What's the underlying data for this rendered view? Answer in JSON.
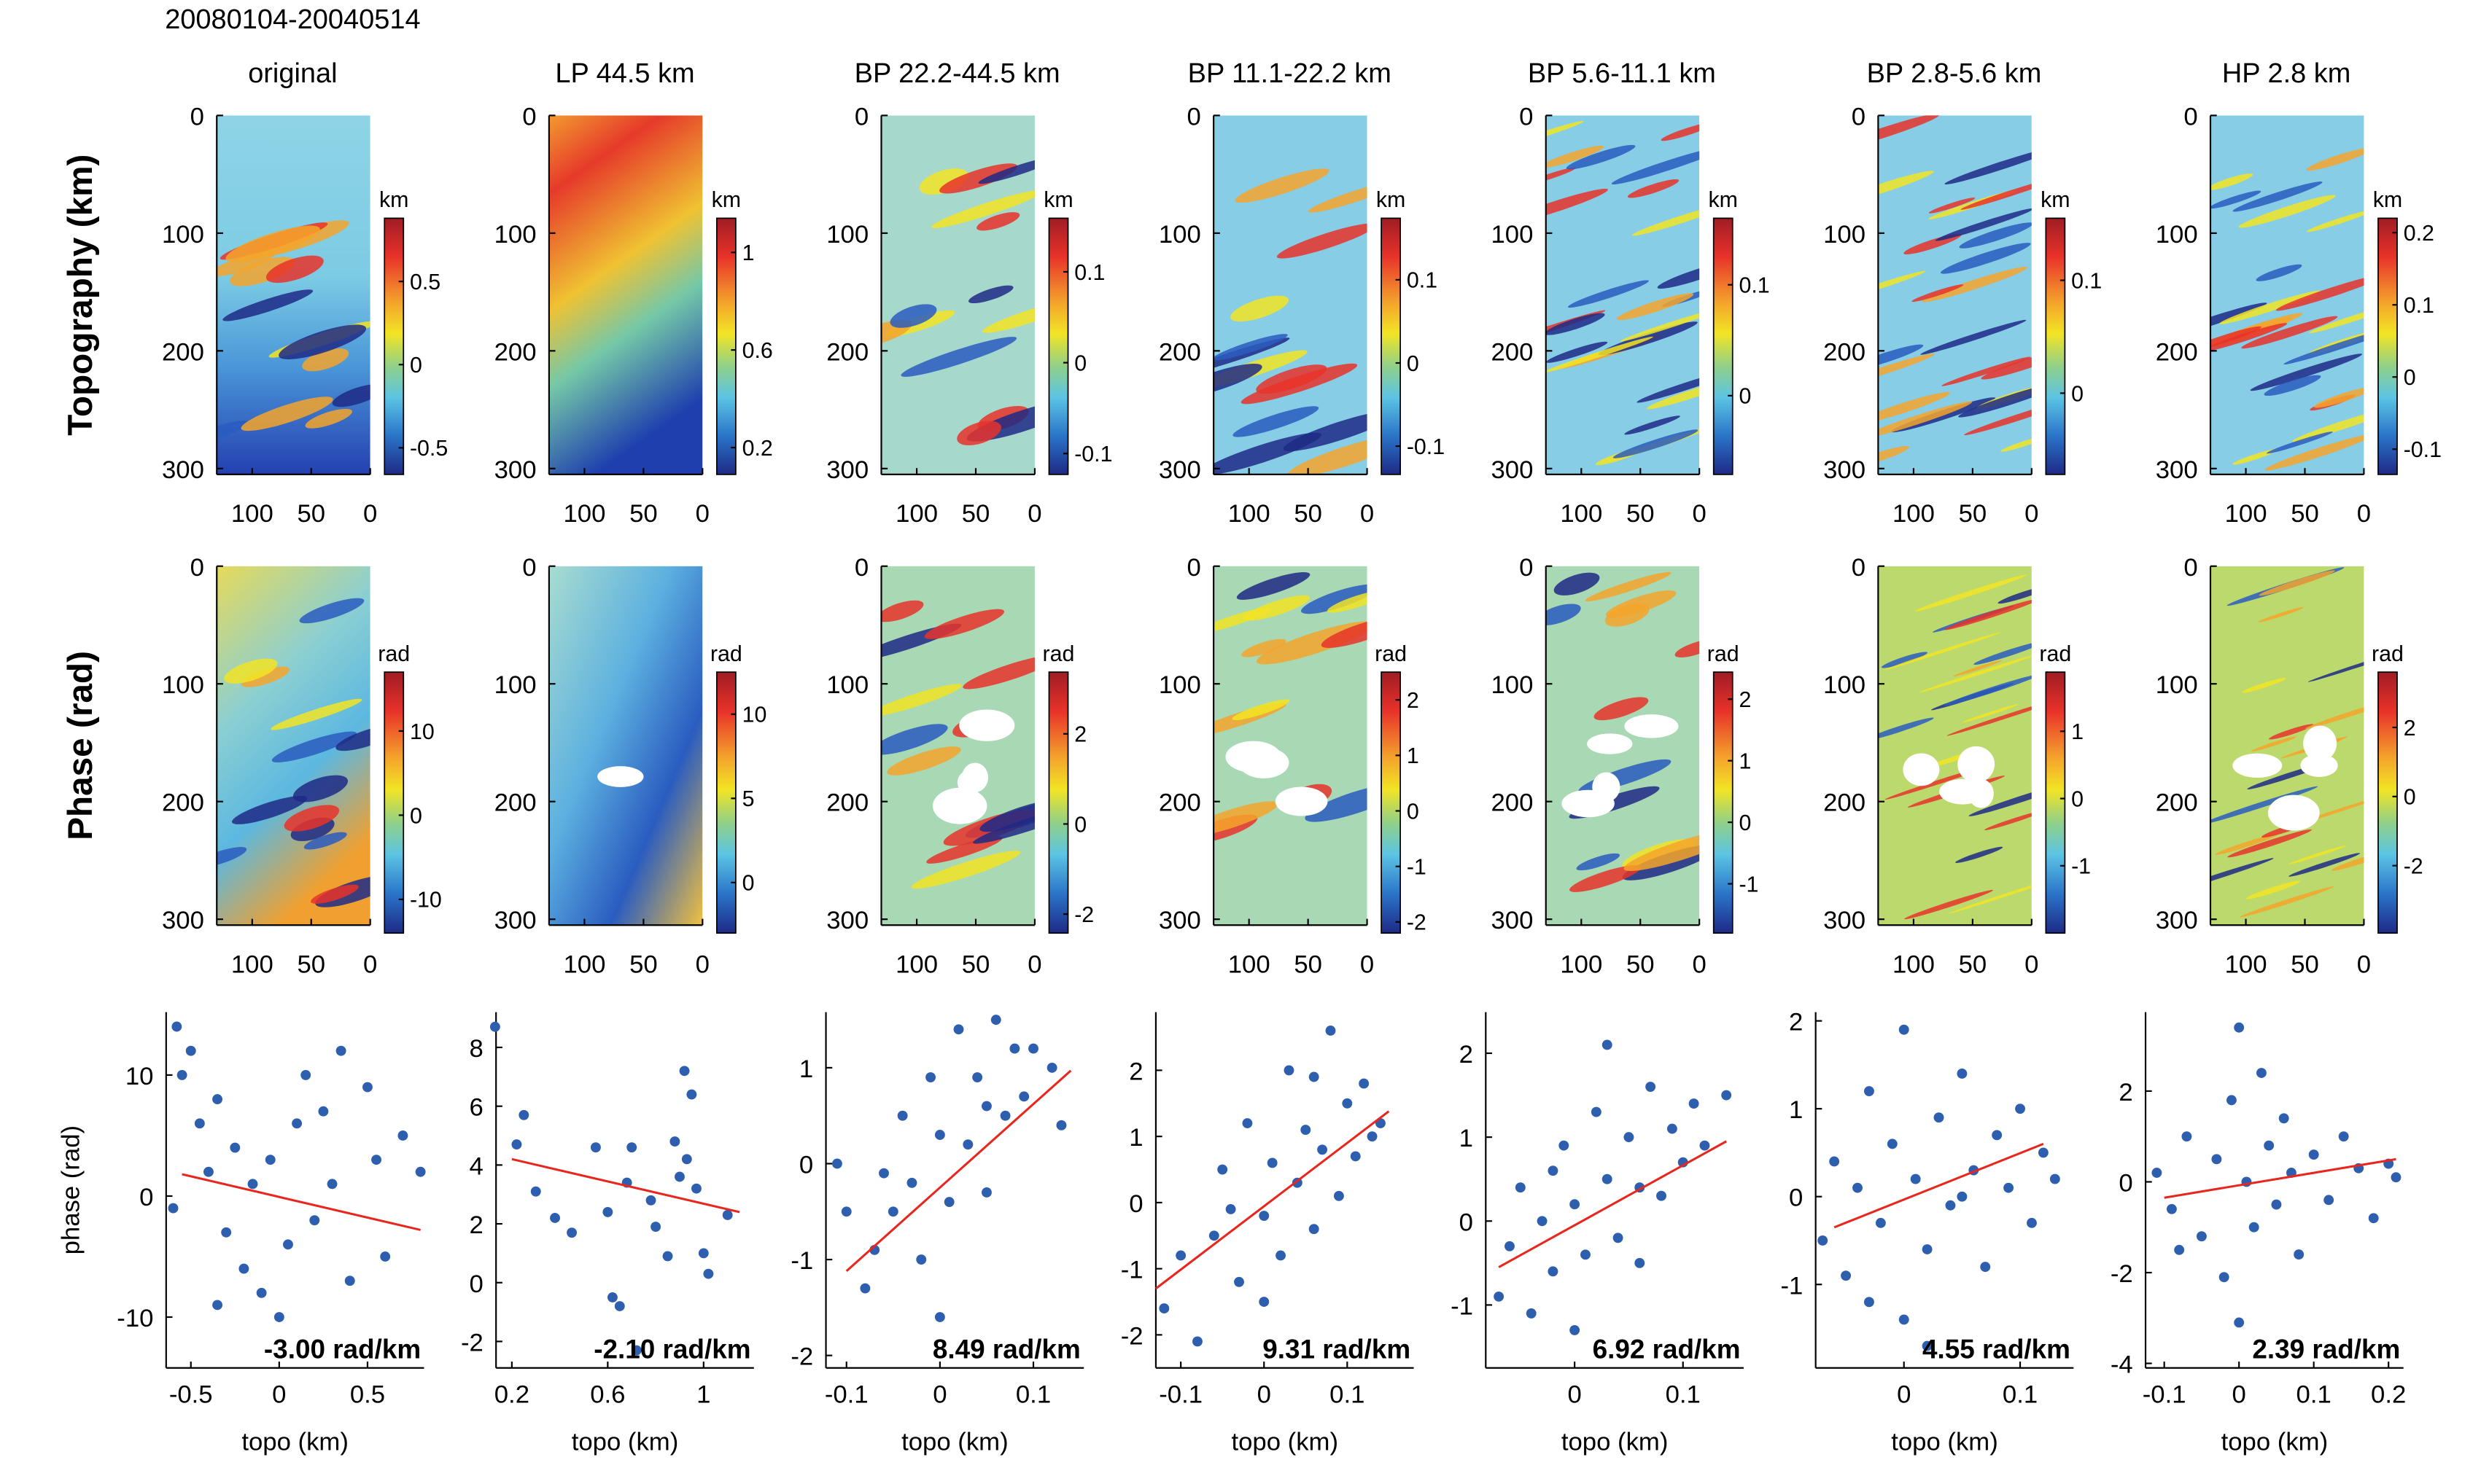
{
  "header": "20080104-20040514",
  "chart_data": [
    {
      "type": "heatmap",
      "title": "original",
      "ylabel": "Topography (km)",
      "ylim": [
        0,
        305
      ],
      "yticks": [
        0,
        100,
        200,
        300
      ],
      "xlim": [
        130,
        0
      ],
      "xticks": [
        100,
        50,
        0
      ],
      "colorbar": {
        "label": "km",
        "lim": [
          -0.66,
          0.88
        ],
        "ticks": [
          0.5,
          0,
          -0.5
        ]
      }
    },
    {
      "type": "heatmap",
      "title": "LP 44.5 km",
      "ylim": [
        0,
        305
      ],
      "yticks": [
        0,
        100,
        200,
        300
      ],
      "xlim": [
        130,
        0
      ],
      "xticks": [
        100,
        50,
        0
      ],
      "colorbar": {
        "label": "km",
        "lim": [
          0.09,
          1.14
        ],
        "ticks": [
          1,
          0.6,
          0.2
        ]
      }
    },
    {
      "type": "heatmap",
      "title": "BP 22.2-44.5 km",
      "ylim": [
        0,
        305
      ],
      "yticks": [
        0,
        100,
        200,
        300
      ],
      "xlim": [
        130,
        0
      ],
      "xticks": [
        100,
        50,
        0
      ],
      "colorbar": {
        "label": "km",
        "lim": [
          -0.123,
          0.159
        ],
        "ticks": [
          0.1,
          0,
          -0.1
        ]
      }
    },
    {
      "type": "heatmap",
      "title": "BP 11.1-22.2 km",
      "ylim": [
        0,
        305
      ],
      "yticks": [
        0,
        100,
        200,
        300
      ],
      "xlim": [
        130,
        0
      ],
      "xticks": [
        100,
        50,
        0
      ],
      "colorbar": {
        "label": "km",
        "lim": [
          -0.134,
          0.174
        ],
        "ticks": [
          0.1,
          0,
          -0.1
        ]
      }
    },
    {
      "type": "heatmap",
      "title": "BP 5.6-11.1 km",
      "ylim": [
        0,
        305
      ],
      "yticks": [
        0,
        100,
        200,
        300
      ],
      "xlim": [
        130,
        0
      ],
      "xticks": [
        100,
        50,
        0
      ],
      "colorbar": {
        "label": "km",
        "lim": [
          -0.071,
          0.16
        ],
        "ticks": [
          0.1,
          0
        ]
      }
    },
    {
      "type": "heatmap",
      "title": "BP 2.8-5.6 km",
      "ylim": [
        0,
        305
      ],
      "yticks": [
        0,
        100,
        200,
        300
      ],
      "xlim": [
        130,
        0
      ],
      "xticks": [
        100,
        50,
        0
      ],
      "colorbar": {
        "label": "km",
        "lim": [
          -0.072,
          0.155
        ],
        "ticks": [
          0.1,
          0
        ]
      }
    },
    {
      "type": "heatmap",
      "title": "HP 2.8 km",
      "ylim": [
        0,
        305
      ],
      "yticks": [
        0,
        100,
        200,
        300
      ],
      "xlim": [
        130,
        0
      ],
      "xticks": [
        100,
        50,
        0
      ],
      "colorbar": {
        "label": "km",
        "lim": [
          -0.135,
          0.22
        ],
        "ticks": [
          0.2,
          0.1,
          0,
          -0.1
        ]
      }
    },
    {
      "type": "heatmap",
      "ylabel": "Phase (rad)",
      "ylim": [
        0,
        305
      ],
      "yticks": [
        0,
        100,
        200,
        300
      ],
      "xlim": [
        130,
        0
      ],
      "xticks": [
        100,
        50,
        0
      ],
      "colorbar": {
        "label": "rad",
        "lim": [
          -14,
          17
        ],
        "ticks": [
          10,
          0,
          -10
        ]
      }
    },
    {
      "type": "heatmap",
      "ylim": [
        0,
        305
      ],
      "yticks": [
        0,
        100,
        200,
        300
      ],
      "xlim": [
        130,
        0
      ],
      "xticks": [
        100,
        50,
        0
      ],
      "colorbar": {
        "label": "rad",
        "lim": [
          -3,
          12.5
        ],
        "ticks": [
          10,
          5,
          0
        ]
      }
    },
    {
      "type": "heatmap",
      "ylim": [
        0,
        305
      ],
      "yticks": [
        0,
        100,
        200,
        300
      ],
      "xlim": [
        130,
        0
      ],
      "xticks": [
        100,
        50,
        0
      ],
      "colorbar": {
        "label": "rad",
        "lim": [
          -2.42,
          3.37
        ],
        "ticks": [
          2,
          0,
          -2
        ]
      }
    },
    {
      "type": "heatmap",
      "ylim": [
        0,
        305
      ],
      "yticks": [
        0,
        100,
        200,
        300
      ],
      "xlim": [
        130,
        0
      ],
      "xticks": [
        100,
        50,
        0
      ],
      "colorbar": {
        "label": "rad",
        "lim": [
          -2.2,
          2.5
        ],
        "ticks": [
          2,
          1,
          0,
          -1,
          -2
        ]
      }
    },
    {
      "type": "heatmap",
      "ylim": [
        0,
        305
      ],
      "yticks": [
        0,
        100,
        200,
        300
      ],
      "xlim": [
        130,
        0
      ],
      "xticks": [
        100,
        50,
        0
      ],
      "colorbar": {
        "label": "rad",
        "lim": [
          -1.8,
          2.44
        ],
        "ticks": [
          2,
          1,
          0,
          -1
        ]
      }
    },
    {
      "type": "heatmap",
      "ylim": [
        0,
        305
      ],
      "yticks": [
        0,
        100,
        200,
        300
      ],
      "xlim": [
        130,
        0
      ],
      "xticks": [
        100,
        50,
        0
      ],
      "colorbar": {
        "label": "rad",
        "lim": [
          -2.0,
          1.88
        ],
        "ticks": [
          1,
          0,
          -1
        ]
      }
    },
    {
      "type": "heatmap",
      "ylim": [
        0,
        305
      ],
      "yticks": [
        0,
        100,
        200,
        300
      ],
      "xlim": [
        130,
        0
      ],
      "xticks": [
        100,
        50,
        0
      ],
      "colorbar": {
        "label": "rad",
        "lim": [
          -3.95,
          3.6
        ],
        "ticks": [
          2,
          0,
          -2
        ]
      }
    },
    {
      "type": "scatter",
      "ylabel": "phase (rad)",
      "xlabel": "topo (km)",
      "annotation": "-3.00 rad/km",
      "color": "#2e5fae",
      "xlim": [
        -0.64,
        0.82
      ],
      "ylim": [
        -14.2,
        15.2
      ],
      "xticks": [
        -0.5,
        0,
        0.5
      ],
      "yticks": [
        -10,
        0,
        10
      ],
      "x": [
        -0.58,
        -0.55,
        -0.5,
        -0.45,
        -0.4,
        -0.35,
        -0.3,
        -0.25,
        -0.2,
        -0.15,
        -0.1,
        -0.05,
        0,
        0.05,
        0.1,
        0.15,
        0.2,
        0.3,
        0.35,
        0.4,
        0.5,
        0.55,
        0.6,
        0.7,
        0.8,
        -0.6,
        0.25,
        -0.35
      ],
      "y": [
        14,
        10,
        12,
        6,
        2,
        8,
        -3,
        4,
        -6,
        1,
        -8,
        3,
        -10,
        -4,
        6,
        10,
        -2,
        1,
        12,
        -7,
        9,
        3,
        -5,
        5,
        2,
        -1,
        7,
        -9
      ],
      "fit": {
        "color": "#e8261e",
        "x": [
          -0.55,
          0.8
        ],
        "y": [
          1.8,
          -2.8
        ]
      }
    },
    {
      "type": "scatter",
      "xlabel": "topo (km)",
      "annotation": "-2.10 rad/km",
      "color": "#2e5fae",
      "xlim": [
        0.134,
        1.21
      ],
      "ylim": [
        -2.9,
        9.2
      ],
      "xticks": [
        0.2,
        0.6,
        1
      ],
      "yticks": [
        -2,
        0,
        2,
        4,
        6,
        8
      ],
      "x": [
        0.13,
        0.22,
        0.25,
        0.3,
        0.38,
        0.45,
        0.55,
        0.6,
        0.62,
        0.65,
        0.7,
        0.72,
        0.78,
        0.8,
        0.88,
        0.9,
        0.92,
        0.93,
        0.95,
        0.97,
        1.0,
        1.02,
        0.85,
        0.68,
        1.1
      ],
      "y": [
        8.7,
        4.7,
        5.7,
        3.1,
        2.2,
        1.7,
        4.6,
        2.4,
        -0.5,
        -0.8,
        4.6,
        -2.3,
        2.8,
        1.9,
        4.8,
        3.6,
        7.2,
        4.2,
        6.4,
        3.2,
        1.0,
        0.3,
        0.9,
        3.4,
        2.3
      ],
      "fit": {
        "color": "#e8261e",
        "x": [
          0.2,
          1.15
        ],
        "y": [
          4.2,
          2.4
        ]
      }
    },
    {
      "type": "scatter",
      "xlabel": "topo (km)",
      "annotation": "8.49 rad/km",
      "color": "#2e5fae",
      "xlim": [
        -0.122,
        0.154
      ],
      "ylim": [
        -2.13,
        1.58
      ],
      "xticks": [
        -0.1,
        0,
        0.1
      ],
      "yticks": [
        -2,
        -1,
        0,
        1
      ],
      "x": [
        -0.11,
        -0.1,
        -0.08,
        -0.07,
        -0.05,
        -0.04,
        -0.03,
        -0.02,
        -0.01,
        0,
        0.01,
        0.02,
        0.03,
        0.04,
        0.05,
        0.06,
        0.07,
        0.08,
        0.1,
        0.12,
        0.13,
        0.0,
        -0.06,
        0.05,
        0.09
      ],
      "y": [
        0.0,
        -0.5,
        -1.3,
        -0.9,
        -0.5,
        0.5,
        -0.2,
        -1.0,
        0.9,
        0.3,
        -0.4,
        1.4,
        0.2,
        0.9,
        0.6,
        1.5,
        0.5,
        1.2,
        1.2,
        1.0,
        0.4,
        -1.6,
        -0.1,
        -0.3,
        0.7
      ],
      "fit": {
        "color": "#e8261e",
        "x": [
          -0.1,
          0.14
        ],
        "y": [
          -1.12,
          0.97
        ]
      }
    },
    {
      "type": "scatter",
      "xlabel": "topo (km)",
      "annotation": "9.31 rad/km",
      "color": "#2e5fae",
      "xlim": [
        -0.13,
        0.18
      ],
      "ylim": [
        -2.5,
        2.88
      ],
      "xticks": [
        -0.1,
        0,
        0.1
      ],
      "yticks": [
        -2,
        -1,
        0,
        1,
        2
      ],
      "x": [
        -0.12,
        -0.1,
        -0.08,
        -0.06,
        -0.05,
        -0.03,
        -0.02,
        0,
        0.01,
        0.02,
        0.03,
        0.04,
        0.05,
        0.06,
        0.07,
        0.08,
        0.09,
        0.1,
        0.11,
        0.12,
        0.13,
        0.14,
        -0.04,
        0.0,
        0.06
      ],
      "y": [
        -1.6,
        -0.8,
        -2.1,
        -0.5,
        0.5,
        -1.2,
        1.2,
        -0.2,
        0.6,
        -0.8,
        2.0,
        0.3,
        1.1,
        -0.4,
        0.8,
        2.6,
        0.1,
        1.5,
        0.7,
        1.8,
        1.0,
        1.2,
        -0.1,
        -1.5,
        1.9
      ],
      "fit": {
        "color": "#e8261e",
        "x": [
          -0.13,
          0.15
        ],
        "y": [
          -1.3,
          1.38
        ]
      }
    },
    {
      "type": "scatter",
      "xlabel": "topo (km)",
      "annotation": "6.92 rad/km",
      "color": "#2e5fae",
      "xlim": [
        -0.082,
        0.156
      ],
      "ylim": [
        -1.75,
        2.49
      ],
      "xticks": [
        0,
        0.1
      ],
      "yticks": [
        -1,
        0,
        1,
        2
      ],
      "x": [
        -0.07,
        -0.06,
        -0.05,
        -0.04,
        -0.03,
        -0.02,
        -0.01,
        0,
        0.01,
        0.02,
        0.03,
        0.04,
        0.05,
        0.06,
        0.07,
        0.08,
        0.09,
        0.1,
        0.11,
        0.12,
        0.14,
        0.0,
        0.03,
        -0.02,
        0.06
      ],
      "y": [
        -0.9,
        -0.3,
        0.4,
        -1.1,
        0.0,
        -0.6,
        0.9,
        0.2,
        -0.4,
        1.3,
        0.5,
        -0.2,
        1.0,
        0.4,
        1.6,
        0.3,
        1.1,
        0.7,
        1.4,
        0.9,
        1.5,
        -1.3,
        2.1,
        0.6,
        -0.5
      ],
      "fit": {
        "color": "#e8261e",
        "x": [
          -0.07,
          0.14
        ],
        "y": [
          -0.55,
          0.95
        ]
      }
    },
    {
      "type": "scatter",
      "xlabel": "topo (km)",
      "annotation": "4.55 rad/km",
      "color": "#2e5fae",
      "xlim": [
        -0.076,
        0.146
      ],
      "ylim": [
        -1.95,
        2.1
      ],
      "xticks": [
        0,
        0.1
      ],
      "yticks": [
        -1,
        0,
        1,
        2
      ],
      "x": [
        -0.07,
        -0.06,
        -0.05,
        -0.04,
        -0.03,
        -0.02,
        -0.01,
        0,
        0,
        0.01,
        0.02,
        0.03,
        0.04,
        0.05,
        0.06,
        0.07,
        0.08,
        0.09,
        0.1,
        0.11,
        0.12,
        0.13,
        0.02,
        -0.03,
        0.05
      ],
      "y": [
        -0.5,
        0.4,
        -0.9,
        0.1,
        1.2,
        -0.3,
        0.6,
        -1.4,
        1.9,
        0.2,
        -0.6,
        0.9,
        -0.1,
        1.4,
        0.3,
        -0.8,
        0.7,
        0.1,
        1.0,
        -0.3,
        0.5,
        0.2,
        -1.7,
        -1.2,
        0.0
      ],
      "fit": {
        "color": "#e8261e",
        "x": [
          -0.06,
          0.12
        ],
        "y": [
          -0.35,
          0.6
        ]
      }
    },
    {
      "type": "scatter",
      "xlabel": "topo (km)",
      "annotation": "2.39 rad/km",
      "color": "#2e5fae",
      "xlim": [
        -0.125,
        0.22
      ],
      "ylim": [
        -4.1,
        3.74
      ],
      "xticks": [
        -0.1,
        0,
        0.1,
        0.2
      ],
      "yticks": [
        -4,
        -2,
        0,
        2
      ],
      "x": [
        -0.11,
        -0.09,
        -0.07,
        -0.05,
        -0.03,
        -0.02,
        -0.01,
        0,
        0,
        0.01,
        0.02,
        0.03,
        0.04,
        0.05,
        0.06,
        0.08,
        0.1,
        0.12,
        0.14,
        0.16,
        0.18,
        0.2,
        0.21,
        -0.08,
        0.07
      ],
      "y": [
        0.2,
        -0.6,
        1.0,
        -1.2,
        0.5,
        -2.1,
        1.8,
        3.4,
        -3.1,
        0.0,
        -1.0,
        2.4,
        0.8,
        -0.5,
        1.4,
        -1.6,
        0.6,
        -0.4,
        1.0,
        0.3,
        -0.8,
        0.4,
        0.1,
        -1.5,
        0.2
      ],
      "fit": {
        "color": "#e8261e",
        "x": [
          -0.1,
          0.21
        ],
        "y": [
          -0.35,
          0.5
        ]
      }
    }
  ]
}
